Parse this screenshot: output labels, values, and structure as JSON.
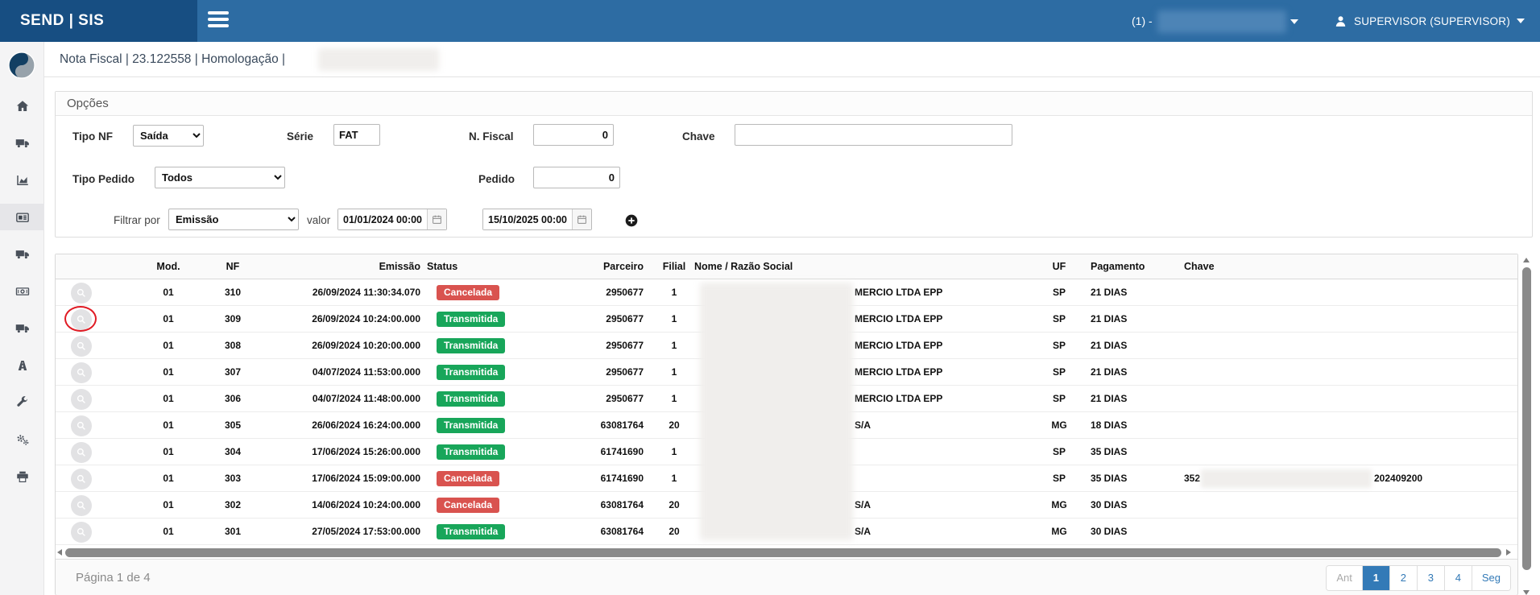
{
  "topbar": {
    "brand": "SEND | SIS",
    "company_prefix": "(1) -",
    "user_label": "SUPERVISOR (SUPERVISOR)"
  },
  "breadcrumb": {
    "text": "Nota Fiscal | 23.122558 | Homologação |"
  },
  "sidebar": {
    "items": [
      {
        "icon": "home-icon"
      },
      {
        "icon": "truck-icon"
      },
      {
        "icon": "area-chart-icon"
      },
      {
        "icon": "invoice-newspaper-icon",
        "active": true
      },
      {
        "icon": "truck-icon"
      },
      {
        "icon": "money-icon"
      },
      {
        "icon": "truck-icon"
      },
      {
        "icon": "road-icon"
      },
      {
        "icon": "wrench-icon"
      },
      {
        "icon": "cogs-icon"
      },
      {
        "icon": "printer-icon"
      }
    ]
  },
  "filters": {
    "panel_title": "Opções",
    "tipo_nf": {
      "label": "Tipo NF",
      "value": "Saída"
    },
    "serie": {
      "label": "Série",
      "value": "FAT"
    },
    "n_fiscal": {
      "label": "N. Fiscal",
      "value": "0"
    },
    "chave": {
      "label": "Chave",
      "value": ""
    },
    "tipo_pedido": {
      "label": "Tipo Pedido",
      "value": "Todos"
    },
    "pedido": {
      "label": "Pedido",
      "value": "0"
    },
    "filtrar_por": {
      "label": "Filtrar por",
      "value": "Emissão"
    },
    "valor_label": "valor",
    "date_from": "01/01/2024 00:00:00",
    "date_to": "15/10/2025 00:00:00"
  },
  "table": {
    "columns": [
      "Mod.",
      "NF",
      "Emissão",
      "Status",
      "Parceiro",
      "Filial",
      "Nome / Razão Social",
      "UF",
      "Pagamento",
      "Chave"
    ],
    "rows": [
      {
        "mod": "01",
        "nf": "310",
        "emissao": "26/09/2024 11:30:34.070",
        "status": "Cancelada",
        "parceiro": "2950677",
        "filial": "1",
        "nome_visible": "MERCIO LTDA EPP",
        "uf": "SP",
        "pagamento": "21 DIAS",
        "chave_prefix": "",
        "chave_suffix": "",
        "annotated": false
      },
      {
        "mod": "01",
        "nf": "309",
        "emissao": "26/09/2024 10:24:00.000",
        "status": "Transmitida",
        "parceiro": "2950677",
        "filial": "1",
        "nome_visible": "MERCIO LTDA EPP",
        "uf": "SP",
        "pagamento": "21 DIAS",
        "chave_prefix": "",
        "chave_suffix": "",
        "annotated": true
      },
      {
        "mod": "01",
        "nf": "308",
        "emissao": "26/09/2024 10:20:00.000",
        "status": "Transmitida",
        "parceiro": "2950677",
        "filial": "1",
        "nome_visible": "MERCIO LTDA EPP",
        "uf": "SP",
        "pagamento": "21 DIAS",
        "chave_prefix": "",
        "chave_suffix": "",
        "annotated": false
      },
      {
        "mod": "01",
        "nf": "307",
        "emissao": "04/07/2024 11:53:00.000",
        "status": "Transmitida",
        "parceiro": "2950677",
        "filial": "1",
        "nome_visible": "MERCIO LTDA EPP",
        "uf": "SP",
        "pagamento": "21 DIAS",
        "chave_prefix": "",
        "chave_suffix": "",
        "annotated": false
      },
      {
        "mod": "01",
        "nf": "306",
        "emissao": "04/07/2024 11:48:00.000",
        "status": "Transmitida",
        "parceiro": "2950677",
        "filial": "1",
        "nome_visible": "MERCIO LTDA EPP",
        "uf": "SP",
        "pagamento": "21 DIAS",
        "chave_prefix": "",
        "chave_suffix": "",
        "annotated": false
      },
      {
        "mod": "01",
        "nf": "305",
        "emissao": "26/06/2024 16:24:00.000",
        "status": "Transmitida",
        "parceiro": "63081764",
        "filial": "20",
        "nome_visible": "S/A",
        "uf": "MG",
        "pagamento": "18 DIAS",
        "chave_prefix": "",
        "chave_suffix": "",
        "annotated": false
      },
      {
        "mod": "01",
        "nf": "304",
        "emissao": "17/06/2024 15:26:00.000",
        "status": "Transmitida",
        "parceiro": "61741690",
        "filial": "1",
        "nome_visible": "",
        "uf": "SP",
        "pagamento": "35 DIAS",
        "chave_prefix": "",
        "chave_suffix": "",
        "annotated": false
      },
      {
        "mod": "01",
        "nf": "303",
        "emissao": "17/06/2024 15:09:00.000",
        "status": "Cancelada",
        "parceiro": "61741690",
        "filial": "1",
        "nome_visible": "",
        "uf": "SP",
        "pagamento": "35 DIAS",
        "chave_prefix": "352",
        "chave_suffix": "202409200",
        "annotated": false
      },
      {
        "mod": "01",
        "nf": "302",
        "emissao": "14/06/2024 10:24:00.000",
        "status": "Cancelada",
        "parceiro": "63081764",
        "filial": "20",
        "nome_visible": "S/A",
        "uf": "MG",
        "pagamento": "30 DIAS",
        "chave_prefix": "",
        "chave_suffix": "",
        "annotated": false
      },
      {
        "mod": "01",
        "nf": "301",
        "emissao": "27/05/2024 17:53:00.000",
        "status": "Transmitida",
        "parceiro": "63081764",
        "filial": "20",
        "nome_visible": "S/A",
        "uf": "MG",
        "pagamento": "30 DIAS",
        "chave_prefix": "",
        "chave_suffix": "",
        "annotated": false
      }
    ]
  },
  "footer": {
    "page_info": "Página 1 de 4",
    "pagination": [
      "Ant",
      "1",
      "2",
      "3",
      "4",
      "Seg"
    ],
    "active_page": "1",
    "disabled": [
      "Ant"
    ]
  },
  "colors": {
    "topbar": "#2d6ca3",
    "topbar_dark": "#174e82",
    "status": {
      "Cancelada": "#d9534f",
      "Transmitida": "#18a65a"
    },
    "pagination_active": "#337ab7",
    "annotation_red": "#e01b24"
  }
}
